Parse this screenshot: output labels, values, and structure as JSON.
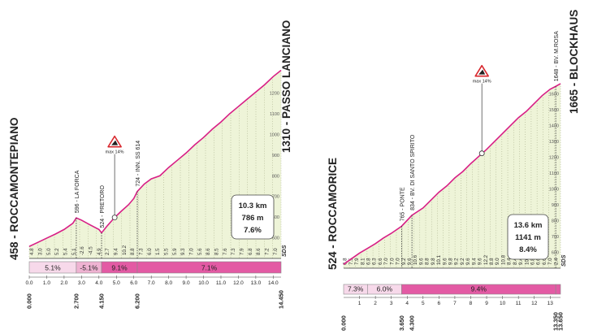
{
  "theme": {
    "fill": "#eef4d8",
    "line": "#d81f86",
    "bar_light": "#f7d9ea",
    "bar_mid": "#efb3d2",
    "bar_dark": "#e35aa4",
    "grid": "#444444",
    "icon_red": "#d8282e"
  },
  "chart_data": [
    {
      "type": "area",
      "title": "458 - ROCCAMONTEPIANO / 1310 - PASSO LANCIANO",
      "start": {
        "altitude": "458",
        "name": "ROCCAMONTEPIANO"
      },
      "finish": {
        "altitude": "1310",
        "name": "PASSO LANCIANO"
      },
      "xlim": [
        0,
        14.45
      ],
      "ylim": [
        400,
        1320
      ],
      "alt_ticks": [
        "500",
        "600",
        "700",
        "800",
        "900",
        "1000",
        "1100",
        "1200"
      ],
      "x_ticks": [
        "0.0",
        "1.0",
        "2.0",
        "3.0",
        "4.0",
        "5.0",
        "6.0",
        "7.0",
        "8.0",
        "9.0",
        "10.0",
        "11.0",
        "12.0",
        "13.0",
        "14.0"
      ],
      "marker_labels": [
        "0.000",
        "2.700",
        "4.150",
        "6.200",
        "14.450"
      ],
      "marker_positions": [
        0,
        2.7,
        4.15,
        6.2,
        14.45
      ],
      "x": [
        0,
        0.5,
        1,
        1.5,
        2,
        2.5,
        2.7,
        3.0,
        3.5,
        4.0,
        4.15,
        4.5,
        4.9,
        5.3,
        5.7,
        6.0,
        6.2,
        6.6,
        7.0,
        7.5,
        8.0,
        8.5,
        9.0,
        9.5,
        10.0,
        10.5,
        11.0,
        11.5,
        12.0,
        12.5,
        13.0,
        13.5,
        14.0,
        14.45
      ],
      "y": [
        458,
        478,
        498,
        518,
        540,
        570,
        596,
        585,
        562,
        540,
        524,
        560,
        598,
        630,
        660,
        690,
        724,
        760,
        785,
        800,
        840,
        875,
        910,
        950,
        985,
        1025,
        1060,
        1100,
        1135,
        1170,
        1205,
        1240,
        1280,
        1310
      ],
      "km_gradients": [
        "4.8",
        "3.0",
        "5.0",
        "5.2",
        "5.4",
        "5.1",
        "-2.6",
        "-4.5",
        "4.9",
        "2.7",
        "9.4",
        "10.2",
        "8.8",
        "7.3",
        "6.0",
        "1.5",
        "5.5",
        "5.9",
        "9.3",
        "7.0",
        "5.6",
        "8.6",
        "8.5",
        "7.6",
        "7.3",
        "7.9",
        "6.8",
        "8.6",
        "7.2",
        "7.0"
      ],
      "segment_gradients": [
        {
          "label": "5.1%",
          "from": 0,
          "to": 2.7,
          "shade": "light"
        },
        {
          "label": "-5.1%",
          "from": 2.7,
          "to": 4.15,
          "shade": "mid"
        },
        {
          "label": "9.1%",
          "from": 4.15,
          "to": 6.2,
          "shade": "dark"
        },
        {
          "label": "7.1%",
          "from": 6.2,
          "to": 14.45,
          "shade": "dark"
        }
      ],
      "annotations": [
        {
          "label": "596 - LA FORCA",
          "x": 2.7,
          "alt": 596
        },
        {
          "label": "524 - PRETORO",
          "x": 4.15,
          "alt": 524
        },
        {
          "label": "724 - INN. SS 614",
          "x": 6.2,
          "alt": 724
        }
      ],
      "max_gradient": {
        "label": "max 14%",
        "x": 4.9,
        "alt": 598
      },
      "summary": {
        "distance": "10.3 km",
        "elevation": "786 m",
        "gradient": "7.6%"
      },
      "logo": "SDS"
    },
    {
      "type": "area",
      "title": "524 - ROCCAMORICE / 1665 - BLOCKHAUS",
      "start": {
        "altitude": "524",
        "name": "ROCCAMORICE"
      },
      "finish": {
        "altitude": "1665",
        "name": "BLOCKHAUS"
      },
      "xlim": [
        0,
        13.65
      ],
      "ylim": [
        500,
        1680
      ],
      "alt_ticks": [
        "600",
        "700",
        "800",
        "900",
        "1000",
        "1100",
        "1200",
        "1300",
        "1400",
        "1500",
        "1600"
      ],
      "x_ticks": [
        "1",
        "2",
        "3",
        "4",
        "5",
        "6",
        "7",
        "8",
        "9",
        "10",
        "11",
        "12",
        "13"
      ],
      "marker_labels": [
        "0.000",
        "3.650",
        "4.300",
        "13.350",
        "13.650"
      ],
      "marker_positions": [
        0,
        3.65,
        4.3,
        13.35,
        13.65
      ],
      "x": [
        0,
        0.5,
        1,
        1.5,
        2,
        2.5,
        3,
        3.65,
        4.3,
        5,
        5.5,
        6,
        6.5,
        7,
        7.5,
        8,
        8.5,
        9,
        9.5,
        10,
        10.5,
        11,
        11.5,
        12,
        12.5,
        13,
        13.35,
        13.65
      ],
      "y": [
        524,
        560,
        595,
        625,
        655,
        690,
        720,
        765,
        834,
        880,
        930,
        980,
        1020,
        1070,
        1110,
        1160,
        1205,
        1250,
        1300,
        1350,
        1400,
        1450,
        1490,
        1540,
        1590,
        1630,
        1648,
        1665
      ],
      "km_gradients": [
        "6.8",
        "7.5",
        "7.9",
        "8.1",
        "6.8",
        "6.3",
        "6.6",
        "7.0",
        "7.0",
        "7.0",
        "9.2",
        "9.6",
        "10.6",
        "9.6",
        "8.8",
        "9.8",
        "10.1",
        "9.6",
        "9.8",
        "9.2",
        "9.2",
        "9.6",
        "9.4",
        "9.6",
        "12.2",
        "8.8",
        "9.0",
        "10.8",
        "8.4",
        "8.4",
        "9.4",
        "10.0",
        "6.8",
        "6.6",
        "6.6",
        "7.0",
        "2.4"
      ],
      "segment_gradients": [
        {
          "label": "7.3%",
          "from": 0,
          "to": 1.5,
          "shade": "light"
        },
        {
          "label": "6.0%",
          "from": 1.5,
          "to": 3.65,
          "shade": "light"
        },
        {
          "label": "9.4%",
          "from": 3.65,
          "to": 13.35,
          "shade": "dark"
        }
      ],
      "annotations": [
        {
          "label": "765 - PONTE",
          "x": 3.65,
          "alt": 765
        },
        {
          "label": "834 - BV. DI SANTO SPIRITO",
          "x": 4.3,
          "alt": 834
        },
        {
          "label": "1648 - BV. M.ROSA",
          "x": 13.35,
          "alt": 1648
        }
      ],
      "max_gradient": {
        "label": "max 14%",
        "x": 8.7,
        "alt": 1225
      },
      "summary": {
        "distance": "13.6 km",
        "elevation": "1141 m",
        "gradient": "8.4%"
      },
      "logo": "SDS"
    }
  ]
}
